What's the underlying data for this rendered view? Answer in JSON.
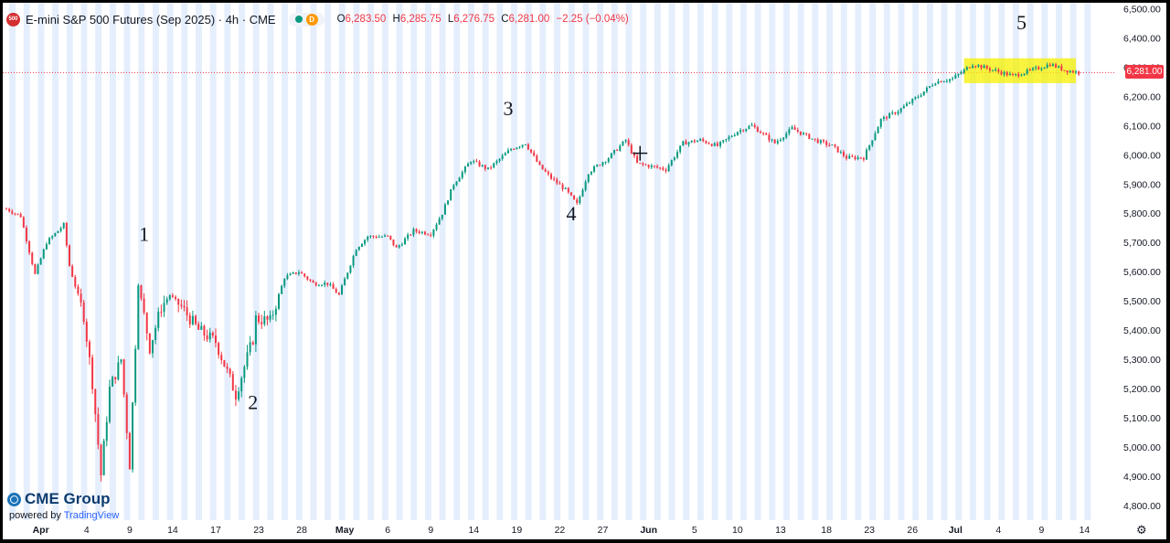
{
  "header": {
    "symbol_badge": "500",
    "title": "E-mini S&P 500 Futures (Sep 2025) · 4h · CME",
    "status_badge": "D",
    "ohlc": {
      "o_label": "O",
      "o": "6,283.50",
      "h_label": "H",
      "h": "6,285.75",
      "l_label": "L",
      "l": "6,276.75",
      "c_label": "C",
      "c": "6,281.00",
      "change": "−2.25 (−0.04%)"
    }
  },
  "logo": {
    "brand": "CME Group",
    "powered_by": "powered by",
    "platform": "TradingView"
  },
  "last_price_label": "6,281.00",
  "colors": {
    "up": "#089981",
    "down": "#f23645",
    "session_band": "#dce8fb",
    "highlight": "#f5f000",
    "price_line": "#f23645"
  },
  "chart_data": {
    "type": "candlestick",
    "ylim": [
      4750,
      6520
    ],
    "y_ticks": [
      4800,
      4900,
      5000,
      5100,
      5200,
      5300,
      5400,
      5500,
      5600,
      5700,
      5800,
      5900,
      6000,
      6100,
      6200,
      6300,
      6400,
      6500
    ],
    "y_tick_labels": [
      "4,800.00",
      "4,900.00",
      "5,000.00",
      "5,100.00",
      "5,200.00",
      "5,300.00",
      "5,400.00",
      "5,500.00",
      "5,600.00",
      "5,700.00",
      "5,800.00",
      "5,900.00",
      "6,000.00",
      "6,100.00",
      "6,200.00",
      "6,300.00",
      "6,400.00",
      "6,500.00"
    ],
    "x_labels": [
      {
        "label": "Apr",
        "bar": 12
      },
      {
        "label": "4",
        "bar": 28
      },
      {
        "label": "9",
        "bar": 43
      },
      {
        "label": "14",
        "bar": 58
      },
      {
        "label": "17",
        "bar": 73
      },
      {
        "label": "23",
        "bar": 88
      },
      {
        "label": "28",
        "bar": 103
      },
      {
        "label": "May",
        "bar": 118
      },
      {
        "label": "6",
        "bar": 133
      },
      {
        "label": "9",
        "bar": 148
      },
      {
        "label": "14",
        "bar": 163
      },
      {
        "label": "19",
        "bar": 178
      },
      {
        "label": "22",
        "bar": 193
      },
      {
        "label": "27",
        "bar": 208
      },
      {
        "label": "Jun",
        "bar": 224
      },
      {
        "label": "5",
        "bar": 240
      },
      {
        "label": "10",
        "bar": 255
      },
      {
        "label": "13",
        "bar": 270
      },
      {
        "label": "18",
        "bar": 286
      },
      {
        "label": "23",
        "bar": 301
      },
      {
        "label": "26",
        "bar": 316
      },
      {
        "label": "Jul",
        "bar": 331
      },
      {
        "label": "4",
        "bar": 346
      },
      {
        "label": "9",
        "bar": 361
      },
      {
        "label": "14",
        "bar": 376
      }
    ],
    "bar_count": 380,
    "anchors": [
      [
        0,
        5815
      ],
      [
        5,
        5790
      ],
      [
        10,
        5590
      ],
      [
        14,
        5700
      ],
      [
        20,
        5760
      ],
      [
        22,
        5620
      ],
      [
        27,
        5450
      ],
      [
        30,
        5220
      ],
      [
        33,
        4905
      ],
      [
        36,
        5200
      ],
      [
        40,
        5300
      ],
      [
        43,
        4940
      ],
      [
        46,
        5560
      ],
      [
        50,
        5340
      ],
      [
        54,
        5480
      ],
      [
        57,
        5520
      ],
      [
        61,
        5480
      ],
      [
        67,
        5400
      ],
      [
        73,
        5360
      ],
      [
        80,
        5180
      ],
      [
        86,
        5370
      ],
      [
        87,
        5440
      ],
      [
        92,
        5430
      ],
      [
        97,
        5580
      ],
      [
        102,
        5600
      ],
      [
        107,
        5560
      ],
      [
        112,
        5560
      ],
      [
        116,
        5520
      ],
      [
        122,
        5680
      ],
      [
        126,
        5720
      ],
      [
        133,
        5720
      ],
      [
        136,
        5680
      ],
      [
        142,
        5740
      ],
      [
        148,
        5730
      ],
      [
        152,
        5800
      ],
      [
        156,
        5900
      ],
      [
        162,
        5980
      ],
      [
        168,
        5950
      ],
      [
        176,
        6020
      ],
      [
        181,
        6040
      ],
      [
        186,
        5960
      ],
      [
        190,
        5920
      ],
      [
        195,
        5880
      ],
      [
        199,
        5830
      ],
      [
        203,
        5940
      ],
      [
        210,
        5990
      ],
      [
        216,
        6050
      ],
      [
        220,
        5970
      ],
      [
        225,
        5960
      ],
      [
        230,
        5950
      ],
      [
        236,
        6040
      ],
      [
        242,
        6050
      ],
      [
        248,
        6030
      ],
      [
        255,
        6080
      ],
      [
        260,
        6100
      ],
      [
        268,
        6040
      ],
      [
        274,
        6090
      ],
      [
        282,
        6050
      ],
      [
        288,
        6030
      ],
      [
        293,
        5990
      ],
      [
        299,
        5990
      ],
      [
        305,
        6120
      ],
      [
        311,
        6150
      ],
      [
        318,
        6200
      ],
      [
        324,
        6250
      ],
      [
        330,
        6260
      ],
      [
        337,
        6310
      ],
      [
        344,
        6290
      ],
      [
        351,
        6270
      ],
      [
        358,
        6290
      ],
      [
        364,
        6310
      ],
      [
        369,
        6290
      ],
      [
        374,
        6281
      ]
    ],
    "last_price": 6281.0,
    "annotations": [
      {
        "text": "1",
        "bar": 48,
        "price": 5705
      },
      {
        "text": "2",
        "bar": 86,
        "price": 5130
      },
      {
        "text": "3",
        "bar": 175,
        "price": 6135
      },
      {
        "text": "4",
        "bar": 197,
        "price": 5775
      },
      {
        "text": "5",
        "bar": 354,
        "price": 6430
      }
    ],
    "highlight": {
      "bar_start": 334,
      "bar_end": 373,
      "price_low": 6245,
      "price_high": 6330
    },
    "cursor": {
      "bar": 221,
      "price": 6005
    }
  }
}
